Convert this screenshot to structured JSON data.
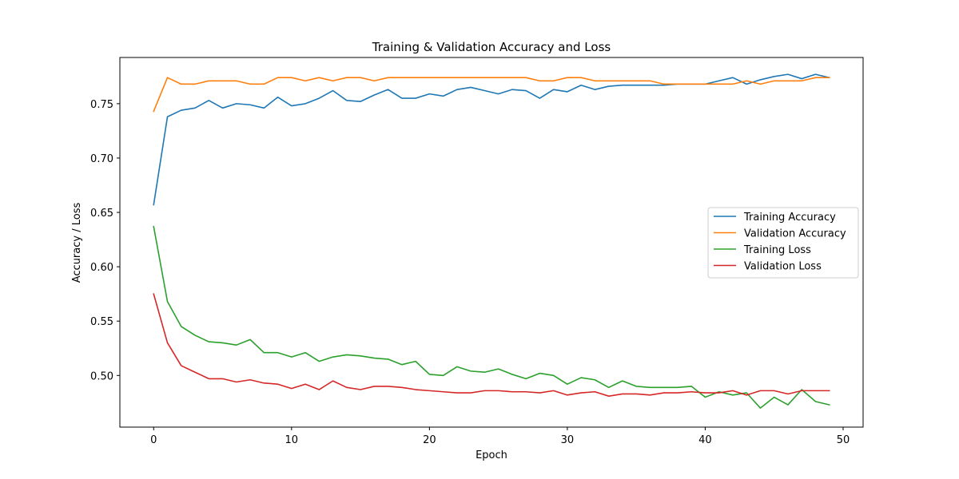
{
  "chart_data": {
    "type": "line",
    "title": "Training & Validation Accuracy and Loss",
    "xlabel": "Epoch",
    "ylabel": "Accuracy / Loss",
    "xlim": [
      -2.45,
      51.45
    ],
    "ylim": [
      0.4525,
      0.7925
    ],
    "xticks": [
      0,
      10,
      20,
      30,
      40,
      50
    ],
    "yticks": [
      0.5,
      0.55,
      0.6,
      0.65,
      0.7,
      0.75
    ],
    "legend_position": "center-right",
    "grid": false,
    "series": [
      {
        "name": "Training Accuracy",
        "color": "#1f77b4",
        "values": [
          0.657,
          0.738,
          0.744,
          0.746,
          0.753,
          0.746,
          0.75,
          0.749,
          0.746,
          0.756,
          0.748,
          0.75,
          0.755,
          0.762,
          0.753,
          0.752,
          0.758,
          0.763,
          0.755,
          0.755,
          0.759,
          0.757,
          0.763,
          0.765,
          0.762,
          0.759,
          0.763,
          0.762,
          0.755,
          0.763,
          0.761,
          0.767,
          0.763,
          0.766,
          0.767,
          0.767,
          0.767,
          0.767,
          0.768,
          0.768,
          0.768,
          0.771,
          0.774,
          0.768,
          0.772,
          0.775,
          0.777,
          0.773,
          0.777,
          0.774
        ]
      },
      {
        "name": "Validation Accuracy",
        "color": "#ff7f0e",
        "values": [
          0.743,
          0.774,
          0.768,
          0.768,
          0.771,
          0.771,
          0.771,
          0.768,
          0.768,
          0.774,
          0.774,
          0.771,
          0.774,
          0.771,
          0.774,
          0.774,
          0.771,
          0.774,
          0.774,
          0.774,
          0.774,
          0.774,
          0.774,
          0.774,
          0.774,
          0.774,
          0.774,
          0.774,
          0.771,
          0.771,
          0.774,
          0.774,
          0.771,
          0.771,
          0.771,
          0.771,
          0.771,
          0.768,
          0.768,
          0.768,
          0.768,
          0.768,
          0.768,
          0.771,
          0.768,
          0.771,
          0.771,
          0.771,
          0.774,
          0.774
        ]
      },
      {
        "name": "Training Loss",
        "color": "#2ca02c",
        "values": [
          0.637,
          0.568,
          0.545,
          0.537,
          0.531,
          0.53,
          0.528,
          0.533,
          0.521,
          0.521,
          0.517,
          0.521,
          0.513,
          0.517,
          0.519,
          0.518,
          0.516,
          0.515,
          0.51,
          0.513,
          0.501,
          0.5,
          0.508,
          0.504,
          0.503,
          0.506,
          0.501,
          0.497,
          0.502,
          0.5,
          0.492,
          0.498,
          0.496,
          0.489,
          0.495,
          0.49,
          0.489,
          0.489,
          0.489,
          0.49,
          0.48,
          0.485,
          0.482,
          0.484,
          0.47,
          0.48,
          0.473,
          0.487,
          0.476,
          0.473
        ]
      },
      {
        "name": "Validation Loss",
        "color": "#d62728",
        "values": [
          0.575,
          0.53,
          0.509,
          0.503,
          0.497,
          0.497,
          0.494,
          0.496,
          0.493,
          0.492,
          0.488,
          0.492,
          0.487,
          0.495,
          0.489,
          0.487,
          0.49,
          0.49,
          0.489,
          0.487,
          0.486,
          0.485,
          0.484,
          0.484,
          0.486,
          0.486,
          0.485,
          0.485,
          0.484,
          0.486,
          0.482,
          0.484,
          0.485,
          0.481,
          0.483,
          0.483,
          0.482,
          0.484,
          0.484,
          0.485,
          0.484,
          0.484,
          0.486,
          0.482,
          0.486,
          0.486,
          0.483,
          0.486,
          0.486,
          0.486
        ]
      }
    ]
  }
}
